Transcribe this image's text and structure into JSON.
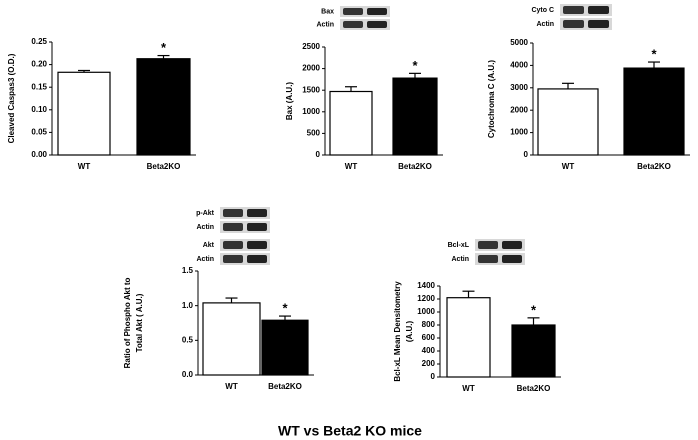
{
  "figure_title": "WT vs  Beta2 KO mice",
  "chart_data": [
    {
      "type": "bar",
      "ylabel": "Cleaved Caspas3 (O.D.)",
      "categories": [
        "WT",
        "Beta2KO"
      ],
      "values": [
        0.183,
        0.213
      ],
      "errors": [
        0.004,
        0.007
      ],
      "colors": [
        "#ffffff",
        "#000000"
      ],
      "annotation": "*",
      "ylim": [
        0,
        0.25
      ],
      "yticks": [
        {
          "value": 0,
          "label": "0.00"
        },
        {
          "value": 0.05,
          "label": "0.05"
        },
        {
          "value": 0.1,
          "label": "0.10"
        },
        {
          "value": 0.15,
          "label": "0.15"
        },
        {
          "value": 0.2,
          "label": "0.20"
        },
        {
          "value": 0.25,
          "label": "0.25"
        }
      ]
    },
    {
      "type": "bar",
      "ylabel": "Bax  (A.U.)",
      "blot_labels": [
        "Bax",
        "Actin"
      ],
      "categories": [
        "WT",
        "Beta2KO"
      ],
      "values": [
        1470,
        1780
      ],
      "errors": [
        110,
        110
      ],
      "colors": [
        "#ffffff",
        "#000000"
      ],
      "annotation": "*",
      "ylim": [
        0,
        2500
      ],
      "yticks": [
        0,
        500,
        1000,
        1500,
        2000,
        2500
      ]
    },
    {
      "type": "bar",
      "ylabel": "Cytochroma C (A.U.)",
      "blot_labels": [
        "Cyto C",
        "Actin"
      ],
      "categories": [
        "WT",
        "Beta2KO"
      ],
      "values": [
        2950,
        3880
      ],
      "errors": [
        250,
        270
      ],
      "colors": [
        "#ffffff",
        "#000000"
      ],
      "annotation": "*",
      "ylim": [
        0,
        5000
      ],
      "yticks": [
        0,
        1000,
        2000,
        3000,
        4000,
        5000
      ]
    },
    {
      "type": "bar",
      "ylabel": [
        "Ratio of Phospho Akt to",
        "Total Akt ( A.U.)"
      ],
      "blot_labels": [
        "p-Akt",
        "Actin",
        "Akt",
        "Actin"
      ],
      "categories": [
        "WT",
        "Beta2KO"
      ],
      "values": [
        1.04,
        0.79
      ],
      "errors": [
        0.07,
        0.06
      ],
      "colors": [
        "#ffffff",
        "#000000"
      ],
      "annotation": "*",
      "ylim": [
        0,
        1.5
      ],
      "yticks": [
        {
          "value": 0,
          "label": "0.0"
        },
        {
          "value": 0.5,
          "label": "0.5"
        },
        {
          "value": 1,
          "label": "1.0"
        },
        {
          "value": 1.5,
          "label": "1.5"
        }
      ]
    },
    {
      "type": "bar",
      "ylabel": [
        "Bcl-xL  Mean Densitometry",
        "(A.U.)"
      ],
      "blot_labels": [
        "Bcl-xL",
        "Actin"
      ],
      "categories": [
        "WT",
        "Beta2KO"
      ],
      "values": [
        1220,
        800
      ],
      "errors": [
        100,
        110
      ],
      "colors": [
        "#ffffff",
        "#000000"
      ],
      "annotation": "*",
      "ylim": [
        0,
        1400
      ],
      "yticks": [
        0,
        200,
        400,
        600,
        800,
        1000,
        1200,
        1400
      ]
    }
  ]
}
